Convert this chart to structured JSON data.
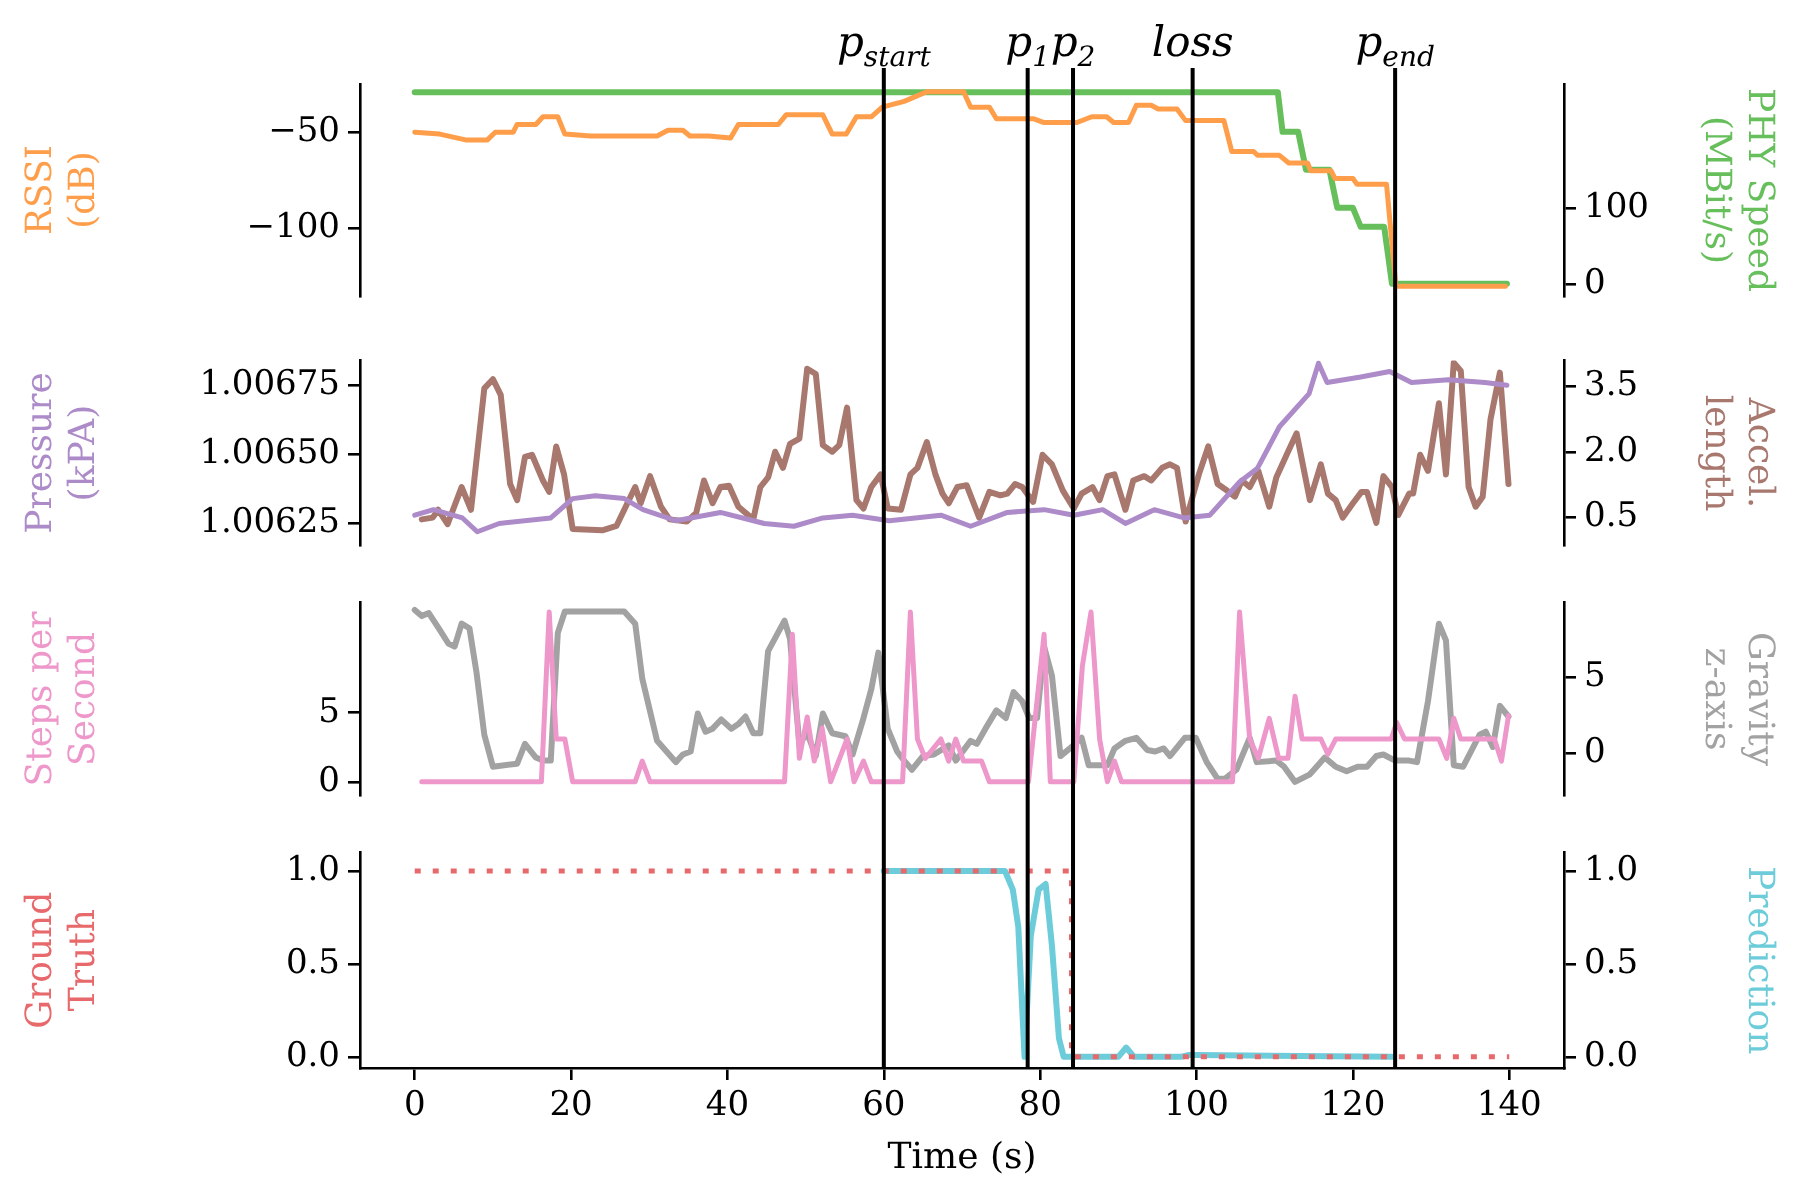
{
  "chart_data": [
    {
      "type": "line",
      "ylabel": "RSSI\n(dB)",
      "y2label": "PHY Speed\n(MBit/s)",
      "marker": "none",
      "tick_labels": "y",
      "xlim": [
        -7,
        147
      ],
      "xticks": [
        0,
        20,
        40,
        60,
        80,
        100,
        120,
        140
      ],
      "ylim": [
        -135,
        -25
      ],
      "yticks": [
        {
          "value": -100,
          "label": "−100"
        },
        {
          "value": -50,
          "label": "−50"
        }
      ],
      "y2lim": [
        -16,
        263
      ],
      "y2ticks": [
        0,
        100
      ],
      "ref_lines": [
        {
          "axis": "x",
          "value": 60,
          "label": "p$_{start}$"
        },
        {
          "axis": "x",
          "value": 78.4,
          "label": "p$_{1}$"
        },
        {
          "axis": "x",
          "value": 84.2,
          "label": "p$_{2}$"
        },
        {
          "axis": "x",
          "value": 99.5,
          "label": "loss"
        },
        {
          "axis": "x",
          "value": 125.4,
          "label": "p$_{end}$"
        }
      ],
      "series": [
        {
          "color": "#ff9e4a",
          "axis": "y",
          "x": [
            0,
            3.2,
            6.5,
            9.3,
            10.3,
            12.6,
            13.1,
            15.5,
            16.4,
            18.3,
            19.2,
            22.5,
            31,
            32.4,
            34.3,
            35.2,
            37.6,
            40.4,
            41.4,
            46.5,
            47.5,
            52.2,
            53.4,
            55.2,
            56.5,
            58.4,
            59.8,
            62.6,
            65.5,
            70.2,
            71.1,
            73.5,
            74.4,
            79.1,
            80.5,
            84.7,
            86.6,
            88.5,
            89.4,
            91.3,
            92.3,
            94.2,
            95.1,
            97.5,
            98.6,
            103.5,
            104.5,
            107.3,
            107.8,
            110.6,
            111.8,
            114.2,
            114.6,
            117.2,
            117.7,
            120,
            120.5,
            124.3,
            125.5,
            139.5
          ],
          "values": [
            -50,
            -51,
            -54,
            -54,
            -50,
            -50,
            -46,
            -46,
            -42,
            -42,
            -51,
            -52,
            -52,
            -49,
            -49,
            -52,
            -52,
            -53,
            -46,
            -46,
            -41,
            -41,
            -51,
            -51,
            -42,
            -42,
            -37,
            -34,
            -29,
            -29,
            -37,
            -37,
            -43,
            -43,
            -45,
            -45,
            -42,
            -42,
            -45,
            -45,
            -36,
            -36,
            -38,
            -38,
            -44,
            -44,
            -60,
            -60,
            -62,
            -62,
            -66,
            -66,
            -70,
            -70,
            -74,
            -74,
            -77,
            -77,
            -130,
            -130
          ]
        },
        {
          "color": "#67bf5c",
          "axis": "y2",
          "x": [
            0,
            110.4,
            111,
            113,
            114,
            117,
            118,
            120,
            121,
            124,
            125,
            139.7
          ],
          "values": [
            252,
            252,
            200,
            200,
            150,
            150,
            100,
            100,
            75,
            75,
            0,
            0
          ]
        }
      ]
    },
    {
      "type": "line",
      "ylabel": "Pressure\n(kPA)",
      "y2label": "Accel.\nlength",
      "marker": "none",
      "tick_labels": "y",
      "xlim": [
        -7,
        147
      ],
      "xticks": [
        0,
        20,
        40,
        60,
        80,
        100,
        120,
        140
      ],
      "ylim": [
        1.00617,
        1.00684
      ],
      "yticks": [
        1.00625,
        {
          "value": 1.0065,
          "label": "1.00650"
        },
        1.00675
      ],
      "y2lim": [
        -0.14,
        4.1
      ],
      "y2ticks": [
        0.5,
        {
          "value": 2,
          "label": "2.0"
        },
        3.5
      ],
      "ref_lines": [
        {
          "axis": "x",
          "value": 60,
          "label": null
        },
        {
          "axis": "x",
          "value": 78.4,
          "label": null
        },
        {
          "axis": "x",
          "value": 84.2,
          "label": null
        },
        {
          "axis": "x",
          "value": 99.5,
          "label": null
        },
        {
          "axis": "x",
          "value": 125.4,
          "label": null
        }
      ],
      "series": [
        {
          "color": "#ad8bc9",
          "axis": "y",
          "x": [
            0,
            2.4,
            6.1,
            8,
            10.8,
            17.4,
            20.2,
            23.1,
            26.8,
            29.2,
            33.4,
            39.1,
            44.7,
            48.5,
            52.2,
            56,
            60.7,
            67.3,
            71.1,
            75.8,
            80.5,
            84.3,
            88,
            90.9,
            94.6,
            98.4,
            101.7,
            105.5,
            107.8,
            110.6,
            114.4,
            115.6,
            116.7,
            121,
            124.7,
            127.5,
            132.2,
            136.9,
            139.7
          ],
          "values": [
            1.00628,
            1.0063,
            1.00627,
            1.00622,
            1.00625,
            1.00627,
            1.00634,
            1.00635,
            1.00634,
            1.0063,
            1.00626,
            1.00629,
            1.00625,
            1.00624,
            1.00627,
            1.00628,
            1.00626,
            1.00628,
            1.00624,
            1.00629,
            1.0063,
            1.00628,
            1.0063,
            1.00625,
            1.0063,
            1.00627,
            1.00628,
            1.0064,
            1.00645,
            1.0066,
            1.00672,
            1.00683,
            1.00676,
            1.00678,
            1.0068,
            1.00676,
            1.00677,
            1.00676,
            1.00675
          ]
        },
        {
          "color": "#a8786e",
          "axis": "y2",
          "x": [
            0.9,
            2.3,
            3,
            4.2,
            6,
            7.2,
            8.9,
            10,
            11,
            12.2,
            13.1,
            14.1,
            15,
            16.4,
            17.2,
            18.1,
            19.1,
            20.2,
            24,
            25.8,
            28.2,
            28.9,
            30.1,
            31.5,
            32.6,
            34.8,
            36,
            37,
            38.1,
            39.1,
            40.2,
            41.4,
            43.3,
            44.2,
            45.2,
            46.1,
            47.1,
            48,
            49.2,
            50.2,
            51.3,
            52.2,
            53.4,
            54.3,
            55.3,
            56.5,
            57.4,
            58.4,
            59.6,
            60.5,
            62.2,
            63.4,
            64.3,
            65.5,
            66.6,
            67.5,
            68.3,
            69.4,
            70.6,
            72.2,
            73.5,
            74.9,
            75.8,
            76.8,
            77.7,
            79.1,
            80.3,
            81.5,
            82.9,
            84.3,
            85.3,
            86.7,
            87.6,
            88.6,
            89.5,
            90.9,
            91.9,
            93.3,
            94.2,
            95.6,
            96.6,
            97.5,
            98.6,
            100.3,
            101.5,
            102.7,
            103.9,
            104.9,
            105.8,
            106.8,
            107.9,
            109.3,
            110.2,
            111.7,
            112.8,
            114.5,
            115.9,
            116.8,
            117.8,
            118.7,
            120,
            121.1,
            121.8,
            123,
            123.9,
            125,
            125.8,
            127.2,
            127.7,
            128.6,
            129.6,
            131,
            131.9,
            132.9,
            133.8,
            134.8,
            135.7,
            136.6,
            137.6,
            138.8,
            139.9
          ],
          "values": [
            0.46,
            0.5,
            0.68,
            0.35,
            1.2,
            0.68,
            3.46,
            3.67,
            3.31,
            1.27,
            0.9,
            1.89,
            1.94,
            1.35,
            1.09,
            2.13,
            1.49,
            0.24,
            0.21,
            0.31,
            1.2,
            0.83,
            1.45,
            0.75,
            0.46,
            0.41,
            0.61,
            1.35,
            0.83,
            1.2,
            1.23,
            0.75,
            0.46,
            1.2,
            1.42,
            2.01,
            1.64,
            2.19,
            2.31,
            3.91,
            3.79,
            2.16,
            2.01,
            2.16,
            3.02,
            0.9,
            0.71,
            1.2,
            1.49,
            0.71,
            0.68,
            1.49,
            1.64,
            2.23,
            1.49,
            1.05,
            0.83,
            1.2,
            1.24,
            0.5,
            1.09,
            1.01,
            1.05,
            1.27,
            1.2,
            0.86,
            1.94,
            1.72,
            1.12,
            0.71,
            1.05,
            1.2,
            0.9,
            1.45,
            1.49,
            0.68,
            1.35,
            1.45,
            1.35,
            1.64,
            1.72,
            1.64,
            0.41,
            1.49,
            2.13,
            1.27,
            1.12,
            0.98,
            1.35,
            1.2,
            1.57,
            0.75,
            1.42,
            2.01,
            2.43,
            0.9,
            1.72,
            1.05,
            0.9,
            0.5,
            0.83,
            1.09,
            1.09,
            0.38,
            1.45,
            1.2,
            0.56,
            1.05,
            1.05,
            1.94,
            1.57,
            3.12,
            1.49,
            4.05,
            3.86,
            1.2,
            0.75,
            0.98,
            2.75,
            3.82,
            1.27
          ]
        }
      ]
    },
    {
      "type": "line",
      "ylabel": "Steps per\nSecond",
      "y2label": "Gravity\nz-axis",
      "marker": "none",
      "tick_labels": "y",
      "xlim": [
        -7,
        147
      ],
      "xticks": [
        0,
        20,
        40,
        60,
        80,
        100,
        120,
        140
      ],
      "ylim": [
        -1,
        13
      ],
      "yticks": [
        0,
        5
      ],
      "y2lim": [
        -2.8,
        9.9
      ],
      "y2ticks": [
        0,
        5
      ],
      "ref_lines": [
        {
          "axis": "x",
          "value": 60,
          "label": null
        },
        {
          "axis": "x",
          "value": 78.4,
          "label": null
        },
        {
          "axis": "x",
          "value": 84.2,
          "label": null
        },
        {
          "axis": "x",
          "value": 99.5,
          "label": null
        },
        {
          "axis": "x",
          "value": 125.4,
          "label": null
        }
      ],
      "series": [
        {
          "color": "#ed97ca",
          "axis": "y",
          "x": [
            0.9,
            16.2,
            17.2,
            18.1,
            19.2,
            20.2,
            28.2,
            29.1,
            30.1,
            47.3,
            48.3,
            49.2,
            50.2,
            51.1,
            52.1,
            53.2,
            55.3,
            56.2,
            57.4,
            58.4,
            62.4,
            63.4,
            64.3,
            65.3,
            67.3,
            68.3,
            69.2,
            70.2,
            72.5,
            73.5,
            78.5,
            80.5,
            81.3,
            84.3,
            85.4,
            86.5,
            87.6,
            88.6,
            89.5,
            90.4,
            104.6,
            105.5,
            106.8,
            107.9,
            109.3,
            110.5,
            111.7,
            112.6,
            113.5,
            115.9,
            116.8,
            117.8,
            124.9,
            125.6,
            126.6,
            131,
            132,
            132.9,
            133.8,
            138.1,
            139,
            139.9
          ],
          "values": [
            0,
            0,
            12.3,
            3.1,
            3.1,
            0,
            0,
            1.5,
            0,
            0,
            10.7,
            1.7,
            4.7,
            1.5,
            3.9,
            0,
            3.1,
            0,
            1.5,
            0,
            0,
            12.3,
            3.1,
            1.7,
            3.1,
            1.5,
            3.1,
            1.5,
            1.5,
            0,
            0,
            10.7,
            0,
            0,
            8.4,
            12.3,
            3.1,
            0,
            1.5,
            0,
            0,
            12.3,
            3.1,
            1.7,
            4.6,
            1.7,
            1.7,
            6.2,
            3.1,
            3.1,
            2,
            3.1,
            3.1,
            4.3,
            3.1,
            3.1,
            1.7,
            4.6,
            3.1,
            3.1,
            1.5,
            4.8
          ]
        },
        {
          "color": "#a2a2a2",
          "axis": "y2",
          "x": [
            0,
            0.9,
            1.8,
            3.2,
            4.3,
            5.1,
            6,
            7,
            7.9,
            8.9,
            10,
            13.1,
            14.1,
            15.5,
            16.4,
            17.4,
            18.3,
            19.2,
            26.8,
            28.2,
            29.1,
            31,
            33.4,
            34.3,
            35.3,
            36.2,
            37.2,
            38.1,
            39.2,
            40.5,
            41.4,
            42.3,
            43.3,
            44.2,
            45.2,
            47.3,
            48,
            49.2,
            50.2,
            51.3,
            52.2,
            53.4,
            55.1,
            56,
            57.4,
            58.4,
            59.3,
            60.5,
            61.7,
            62.6,
            63.6,
            65,
            66.4,
            68.3,
            69.2,
            71.1,
            71.9,
            73,
            74.4,
            75.6,
            76.6,
            77.7,
            78.6,
            79.6,
            80.5,
            81.5,
            82.6,
            83.8,
            85.3,
            86.2,
            88.6,
            89.5,
            90.9,
            92.3,
            93.7,
            94.7,
            95.8,
            96.6,
            98.5,
            99.9,
            101.3,
            102.7,
            103.6,
            105.1,
            106.8,
            107.7,
            110.2,
            111.2,
            112.6,
            114.5,
            116.4,
            117.8,
            119.2,
            120.6,
            121.8,
            123,
            123.9,
            125.4,
            127.2,
            128.2,
            129.6,
            131,
            131.9,
            132.9,
            134.1,
            136.2,
            137,
            137.9,
            138.8,
            139.9
          ],
          "values": [
            9.4,
            9,
            9.2,
            8.1,
            7.2,
            7,
            8.5,
            8.2,
            5.3,
            1.2,
            -0.9,
            -0.7,
            0.6,
            -0.3,
            -0.5,
            -0.5,
            7.9,
            9.3,
            9.3,
            8.5,
            4.9,
            0.8,
            -0.6,
            -0.1,
            0.1,
            2.6,
            1.4,
            1.6,
            2.2,
            1.6,
            1.9,
            2.4,
            1.3,
            1.3,
            6.7,
            8.7,
            7.5,
            0.6,
            1.3,
            -0.2,
            2.6,
            1.3,
            1.1,
            -0.1,
            2.3,
            4.2,
            6.6,
            1.6,
            0.1,
            -0.5,
            -1.1,
            -0.2,
            -0.1,
            0.5,
            -0.5,
            0.8,
            0.6,
            1.6,
            2.8,
            2.3,
            4,
            3.4,
            2.3,
            2.3,
            7,
            5.1,
            -0.2,
            0.3,
            1,
            -0.8,
            -0.8,
            0.3,
            0.8,
            1,
            0.2,
            0.1,
            0.3,
            -0.2,
            1,
            1,
            -0.6,
            -1.7,
            -1.7,
            -1.1,
            1,
            -0.6,
            -0.5,
            -0.9,
            -1.9,
            -1.4,
            -0.3,
            -0.9,
            -1.2,
            -0.9,
            -0.9,
            -0.2,
            -0.1,
            -0.5,
            -0.5,
            -0.6,
            3.4,
            8.5,
            7.4,
            -0.8,
            -0.9,
            1.2,
            1.4,
            0.4,
            3.1,
            2.4
          ]
        }
      ]
    },
    {
      "type": "line",
      "ylabel": "Ground\nTruth",
      "y2label": "Prediction",
      "xlabel": "Time (s)",
      "marker": "none",
      "xlim": [
        -7,
        147
      ],
      "xticks": [
        0,
        20,
        40,
        60,
        80,
        100,
        120,
        140
      ],
      "ylim": [
        -0.06,
        1.1
      ],
      "yticks": [
        {
          "value": 0,
          "label": "0.0"
        },
        0.5,
        {
          "value": 1,
          "label": "1.0"
        }
      ],
      "y2lim": [
        -0.06,
        1.1
      ],
      "y2ticks": [
        {
          "value": 0,
          "label": "0.0"
        },
        0.5,
        {
          "value": 1,
          "label": "1.0"
        }
      ],
      "ref_lines": [
        {
          "axis": "x",
          "value": 60,
          "label": null
        },
        {
          "axis": "x",
          "value": 78.4,
          "label": null
        },
        {
          "axis": "x",
          "value": 84.2,
          "label": null
        },
        {
          "axis": "x",
          "value": 99.5,
          "label": null
        },
        {
          "axis": "x",
          "value": 125.4,
          "label": null
        }
      ],
      "series": [
        {
          "color": "#e8696b",
          "axis": "y",
          "line_style": "dotted",
          "x": [
            0,
            84,
            84,
            140
          ],
          "values": [
            1,
            1,
            0,
            0
          ]
        },
        {
          "color": "#6dccda",
          "axis": "y2",
          "x": [
            60,
            75.5,
            76.5,
            77.2,
            78,
            78.8,
            79.8,
            80.7,
            81.5,
            82.4,
            83,
            90,
            91,
            92,
            98,
            99,
            100,
            125
          ],
          "values": [
            1,
            1,
            0.9,
            0.7,
            0,
            0.65,
            0.9,
            0.93,
            0.6,
            0.1,
            0,
            0,
            0.05,
            0,
            0,
            0.01,
            0.01,
            0
          ]
        }
      ]
    }
  ]
}
